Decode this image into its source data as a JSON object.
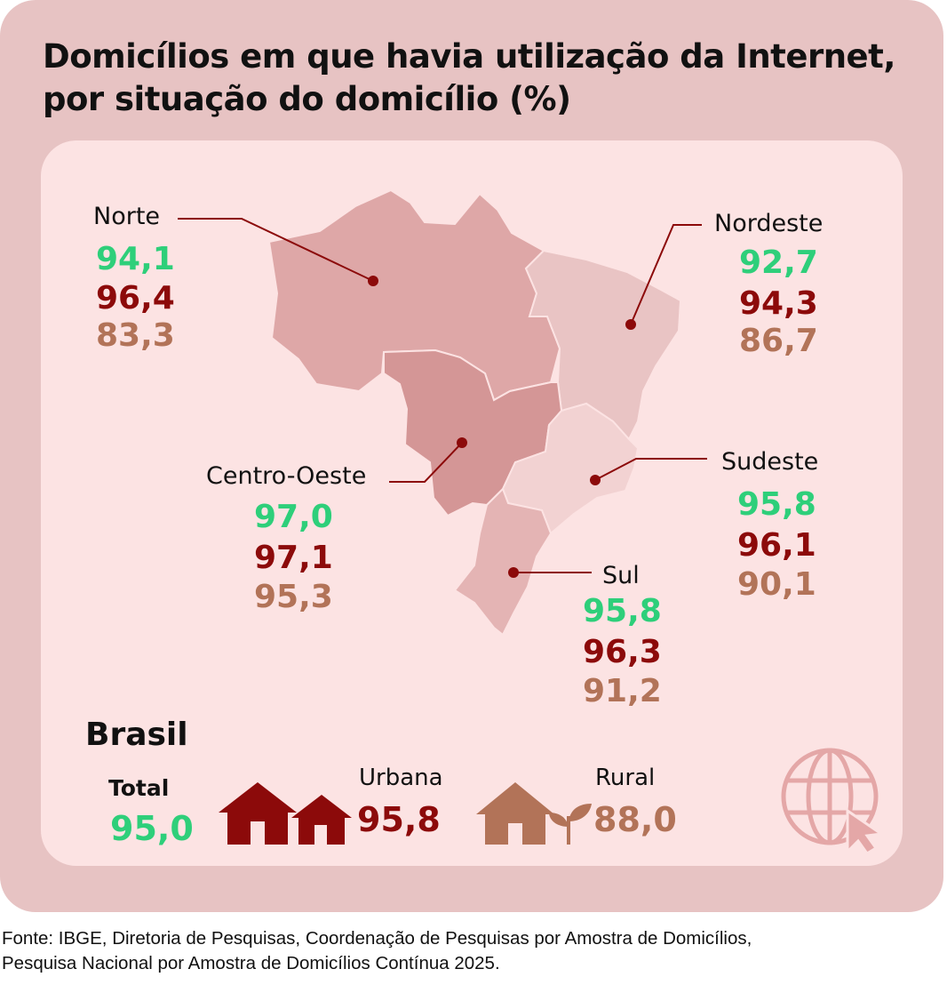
{
  "title": {
    "line1": "Domicílios em que havia utilização da Internet,",
    "line2": "por situação do domicílio (%)"
  },
  "colors": {
    "total": "#2ecf7a",
    "urbana": "#8c0a0a",
    "rural": "#b27358",
    "card_bg": "#e7c3c3",
    "panel_bg": "#fce3e3"
  },
  "regions": {
    "norte": {
      "name": "Norte",
      "total": "94,1",
      "urbana": "96,4",
      "rural": "83,3"
    },
    "nordeste": {
      "name": "Nordeste",
      "total": "92,7",
      "urbana": "94,3",
      "rural": "86,7"
    },
    "centro_oeste": {
      "name": "Centro-Oeste",
      "total": "97,0",
      "urbana": "97,1",
      "rural": "95,3"
    },
    "sudeste": {
      "name": "Sudeste",
      "total": "95,8",
      "urbana": "96,1",
      "rural": "90,1"
    },
    "sul": {
      "name": "Sul",
      "total": "95,8",
      "urbana": "96,3",
      "rural": "91,2"
    }
  },
  "brasil": {
    "label": "Brasil",
    "total_label": "Total",
    "total_value": "95,0",
    "urbana_label": "Urbana",
    "urbana_value": "95,8",
    "rural_label": "Rural",
    "rural_value": "88,0"
  },
  "icons": {
    "urbana": "two-houses-icon",
    "rural": "house-with-plant-icon",
    "corner": "globe-cursor-icon"
  },
  "footer": {
    "line1": "Fonte: IBGE, Diretoria de Pesquisas, Coordenação de Pesquisas por Amostra de Domicílios,",
    "line2": "Pesquisa Nacional por Amostra de Domicílios Contínua 2025."
  }
}
